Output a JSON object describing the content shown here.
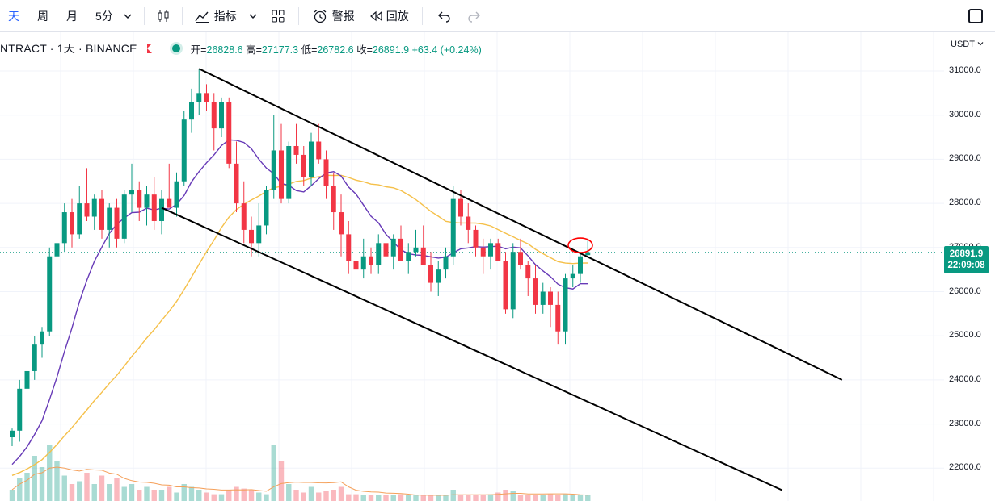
{
  "toolbar": {
    "interval_day": "天",
    "interval_week": "周",
    "interval_month": "月",
    "interval_5min": "5分",
    "indicators_label": "指标",
    "alert_label": "警报",
    "replay_label": "回放"
  },
  "legend": {
    "symbol": "NTRACT · 1天 · BINANCE",
    "open_label": "开=",
    "open": "26828.6",
    "high_label": "高=",
    "high": "27177.3",
    "low_label": "低=",
    "low": "26782.6",
    "close_label": "收=",
    "close": "26891.9",
    "change": "+63.4 (+0.24%)"
  },
  "price_scale": {
    "currency": "USDT",
    "labels": [
      "31000.0",
      "30000.0",
      "29000.0",
      "28000.0",
      "27000.0",
      "26000.0",
      "25000.0",
      "24000.0",
      "23000.0",
      "22000.0"
    ],
    "current_price": "26891.9",
    "countdown": "22:09:08"
  },
  "colors": {
    "up": "#089981",
    "down": "#f23645",
    "ma_short": "#673ab7",
    "ma_long": "#f5c04a",
    "trendline": "#000000",
    "annotation": "#ff0000"
  },
  "icons": [
    "chevron-down-icon",
    "candles-icon",
    "indicators-icon",
    "layouts-icon",
    "alarm-icon",
    "replay-icon",
    "undo-icon",
    "redo-icon",
    "square-icon"
  ],
  "chart_data": {
    "type": "candlestick",
    "interval": "1D",
    "y_range": [
      21500,
      31500
    ],
    "candles": [
      [
        22700,
        22900,
        22500,
        22850
      ],
      [
        22850,
        24000,
        22600,
        23800
      ],
      [
        23800,
        24300,
        23700,
        24200
      ],
      [
        24200,
        25000,
        24000,
        24800
      ],
      [
        24800,
        25200,
        24500,
        25100
      ],
      [
        25100,
        27000,
        25000,
        26800
      ],
      [
        26800,
        27300,
        26500,
        27100
      ],
      [
        27100,
        28000,
        26900,
        27800
      ],
      [
        27800,
        28100,
        27000,
        27300
      ],
      [
        27300,
        28400,
        27200,
        28000
      ],
      [
        28000,
        28800,
        27600,
        27700
      ],
      [
        27700,
        28200,
        27400,
        28100
      ],
      [
        28100,
        28300,
        27200,
        27400
      ],
      [
        27400,
        28000,
        27000,
        27900
      ],
      [
        27900,
        28100,
        27000,
        27200
      ],
      [
        27200,
        28300,
        27100,
        28200
      ],
      [
        28200,
        28900,
        27800,
        28300
      ],
      [
        28300,
        28500,
        27600,
        27900
      ],
      [
        27900,
        28400,
        27500,
        28200
      ],
      [
        28200,
        28600,
        27400,
        27600
      ],
      [
        27600,
        28300,
        27300,
        28100
      ],
      [
        28100,
        28900,
        27900,
        27900
      ],
      [
        27900,
        28700,
        27700,
        28500
      ],
      [
        28500,
        30100,
        28400,
        29900
      ],
      [
        29900,
        30600,
        29600,
        30300
      ],
      [
        30300,
        31050,
        30000,
        30500
      ],
      [
        30500,
        30700,
        30100,
        30300
      ],
      [
        30300,
        30500,
        29200,
        29700
      ],
      [
        29700,
        30400,
        29500,
        30300
      ],
      [
        30300,
        30400,
        28800,
        28900
      ],
      [
        28900,
        29400,
        27800,
        28000
      ],
      [
        28000,
        28500,
        27100,
        27400
      ],
      [
        27400,
        27700,
        26800,
        27100
      ],
      [
        27100,
        28000,
        26800,
        27500
      ],
      [
        27500,
        28400,
        27300,
        28300
      ],
      [
        28300,
        30000,
        28100,
        29200
      ],
      [
        29200,
        29800,
        28000,
        28100
      ],
      [
        28100,
        29400,
        28000,
        29300
      ],
      [
        29300,
        29800,
        28900,
        29100
      ],
      [
        29100,
        29300,
        28400,
        28600
      ],
      [
        28600,
        29600,
        28400,
        29400
      ],
      [
        29400,
        29800,
        28900,
        29000
      ],
      [
        29000,
        29200,
        28100,
        28400
      ],
      [
        28400,
        28700,
        27400,
        27800
      ],
      [
        27800,
        28200,
        26800,
        27300
      ],
      [
        27300,
        27600,
        26400,
        26700
      ],
      [
        26700,
        27000,
        25800,
        26500
      ],
      [
        26500,
        27200,
        26300,
        26800
      ],
      [
        26800,
        27000,
        26400,
        26600
      ],
      [
        26600,
        27300,
        26400,
        27100
      ],
      [
        27100,
        27400,
        26600,
        26800
      ],
      [
        26800,
        27300,
        26500,
        27200
      ],
      [
        27200,
        27500,
        26700,
        26700
      ],
      [
        26700,
        27100,
        26400,
        26900
      ],
      [
        26900,
        27400,
        26800,
        27000
      ],
      [
        27000,
        27500,
        26600,
        26600
      ],
      [
        26600,
        26900,
        26000,
        26200
      ],
      [
        26200,
        26700,
        25900,
        26500
      ],
      [
        26500,
        27000,
        26300,
        26800
      ],
      [
        26800,
        28400,
        26600,
        28100
      ],
      [
        28100,
        28300,
        27500,
        27700
      ],
      [
        27700,
        28000,
        27100,
        27400
      ],
      [
        27400,
        27500,
        26800,
        27000
      ],
      [
        27000,
        27200,
        26400,
        26800
      ],
      [
        26800,
        27200,
        26500,
        27100
      ],
      [
        27100,
        27200,
        26700,
        26700
      ],
      [
        26700,
        26900,
        25500,
        25600
      ],
      [
        25600,
        27100,
        25400,
        26900
      ],
      [
        26900,
        27200,
        26500,
        26600
      ],
      [
        26600,
        26700,
        25900,
        26300
      ],
      [
        26300,
        26600,
        25500,
        25700
      ],
      [
        25700,
        26200,
        25500,
        26000
      ],
      [
        26000,
        26100,
        25200,
        25700
      ],
      [
        25700,
        26000,
        24800,
        25100
      ],
      [
        25100,
        26400,
        24800,
        26300
      ],
      [
        26300,
        26600,
        26100,
        26400
      ],
      [
        26400,
        26900,
        26200,
        26800
      ],
      [
        26828.6,
        27177.3,
        26782.6,
        26891.9
      ]
    ],
    "volume_relative": [
      0.2,
      0.4,
      0.5,
      0.8,
      0.6,
      1.0,
      0.7,
      0.45,
      0.3,
      0.35,
      0.5,
      0.3,
      0.45,
      0.3,
      0.4,
      0.25,
      0.3,
      0.2,
      0.25,
      0.2,
      0.2,
      0.25,
      0.15,
      0.3,
      0.25,
      0.2,
      0.15,
      0.12,
      0.12,
      0.2,
      0.25,
      0.22,
      0.2,
      0.15,
      0.12,
      1.0,
      0.7,
      0.3,
      0.2,
      0.15,
      0.25,
      0.15,
      0.18,
      0.2,
      0.25,
      0.12,
      0.12,
      0.1,
      0.1,
      0.1,
      0.1,
      0.1,
      0.12,
      0.1,
      0.1,
      0.1,
      0.1,
      0.1,
      0.1,
      0.2,
      0.1,
      0.1,
      0.1,
      0.1,
      0.12,
      0.15,
      0.2,
      0.18,
      0.1,
      0.1,
      0.1,
      0.1,
      0.12,
      0.1,
      0.12,
      0.1,
      0.1,
      0.1
    ],
    "trend_lines": [
      {
        "name": "upper-channel",
        "from": {
          "i": 25,
          "price": 31050
        },
        "to": {
          "i": 111,
          "price": 24000
        }
      },
      {
        "name": "lower-channel",
        "from": {
          "i": 20,
          "price": 27900
        },
        "to": {
          "i": 103,
          "price": 21500
        }
      }
    ],
    "circle_annotation": {
      "i": 76,
      "price": 27050
    }
  }
}
